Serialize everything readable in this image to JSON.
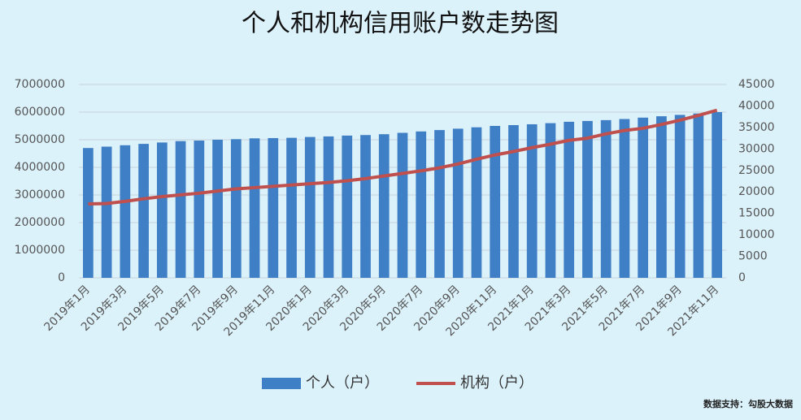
{
  "chart_data": {
    "type": "bar-line",
    "title": "个人和机构信用账户数走势图",
    "categories": [
      "2019年1月",
      null,
      "2019年3月",
      null,
      "2019年5月",
      null,
      "2019年7月",
      null,
      "2019年9月",
      null,
      "2019年11月",
      null,
      "2020年1月",
      null,
      "2020年3月",
      null,
      "2020年5月",
      null,
      "2020年7月",
      null,
      "2020年9月",
      null,
      "2020年11月",
      null,
      "2021年1月",
      null,
      "2021年3月",
      null,
      "2021年5月",
      null,
      "2021年7月",
      null,
      "2021年9月",
      null,
      "2021年11月"
    ],
    "series": [
      {
        "name": "个人（户）",
        "type": "bar",
        "color": "#3f7fc6",
        "axis": "y",
        "values": [
          4700000,
          4750000,
          4800000,
          4850000,
          4900000,
          4950000,
          4970000,
          5000000,
          5020000,
          5050000,
          5060000,
          5070000,
          5100000,
          5120000,
          5150000,
          5170000,
          5200000,
          5250000,
          5300000,
          5350000,
          5400000,
          5450000,
          5500000,
          5530000,
          5560000,
          5600000,
          5650000,
          5680000,
          5710000,
          5750000,
          5800000,
          5850000,
          5900000,
          5950000,
          6000000
        ]
      },
      {
        "name": "机构（户）",
        "type": "line",
        "color": "#c0504d",
        "axis": "y2",
        "values": [
          17200,
          17300,
          17800,
          18400,
          18900,
          19300,
          19700,
          20200,
          20700,
          21000,
          21300,
          21600,
          21900,
          22200,
          22600,
          23100,
          23700,
          24300,
          24900,
          25600,
          26500,
          27600,
          28600,
          29400,
          30300,
          31100,
          32000,
          32500,
          33500,
          34300,
          34800,
          35700,
          36700,
          37800,
          39000
        ]
      }
    ],
    "ylim": [
      0,
      7000000
    ],
    "yticks": [
      0,
      1000000,
      2000000,
      3000000,
      4000000,
      5000000,
      6000000,
      7000000
    ],
    "y2lim": [
      0,
      45000
    ],
    "y2ticks": [
      0,
      5000,
      10000,
      15000,
      20000,
      25000,
      30000,
      35000,
      40000,
      45000
    ],
    "grid": true,
    "legend": "bottom",
    "source": "数据支持：勾股大数据"
  }
}
